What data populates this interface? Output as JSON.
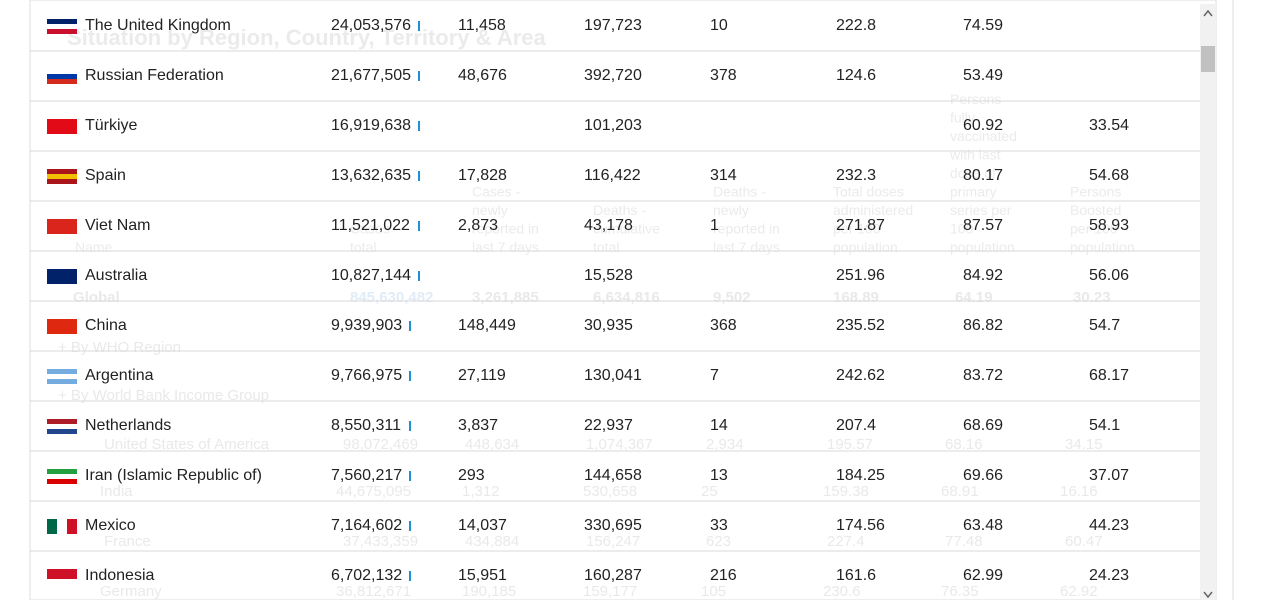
{
  "background": {
    "title": "Situation by Region, Country, Territory & Area",
    "headers": [
      "Name",
      "Cases - total",
      "Cases - newly reported in last 7 days",
      "Deaths - cumulative total",
      "Deaths - newly reported in last 7 days",
      "Total doses administered per 100 population",
      "Persons fully vaccinated with last dose of primary series per 100 population",
      "Persons Boosted per 100 population"
    ],
    "global": [
      "Global",
      "845,630,482",
      "3,261,885",
      "6,634,816",
      "9,502",
      "168.89",
      "64.19",
      "30.23"
    ],
    "groups": [
      "+ By WHO Region",
      "+ By World Bank Income Group"
    ],
    "rows": [
      [
        "United States of America",
        "98,072,469",
        "448,634",
        "1,074,367",
        "2,934",
        "195.57",
        "68.16",
        "34.15"
      ],
      [
        "India",
        "44,675,095",
        "1,312",
        "530,658",
        "25",
        "159.38",
        "68.91",
        "16.16"
      ],
      [
        "France",
        "37,433,359",
        "434,884",
        "156,247",
        "623",
        "227.4",
        "77.48",
        "60.47"
      ],
      [
        "Germany",
        "36,812,671",
        "190,185",
        "159,177",
        "105",
        "230.6",
        "76.35",
        "62.92"
      ]
    ]
  },
  "table": {
    "rows": [
      [
        "The United Kingdom",
        "24,053,576",
        "11,458",
        "197,723",
        "10",
        "222.8",
        "74.59",
        null
      ],
      [
        "Russian Federation",
        "21,677,505",
        "48,676",
        "392,720",
        "378",
        "124.6",
        "53.49",
        null
      ],
      [
        "Türkiye",
        "16,919,638",
        null,
        "101,203",
        null,
        null,
        "60.92",
        "33.54"
      ],
      [
        "Spain",
        "13,632,635",
        "17,828",
        "116,422",
        "314",
        "232.3",
        "80.17",
        "54.68"
      ],
      [
        "Viet Nam",
        "11,521,022",
        "2,873",
        "43,178",
        "1",
        "271.87",
        "87.57",
        "58.93"
      ],
      [
        "Australia",
        "10,827,144",
        null,
        "15,528",
        null,
        "251.96",
        "84.92",
        "56.06"
      ],
      [
        "China",
        "9,939,903",
        "148,449",
        "30,935",
        "368",
        "235.52",
        "86.82",
        "54.7"
      ],
      [
        "Argentina",
        "9,766,975",
        "27,119",
        "130,041",
        "7",
        "242.62",
        "83.72",
        "68.17"
      ],
      [
        "Netherlands",
        "8,550,311",
        "3,837",
        "22,937",
        "14",
        "207.4",
        "68.69",
        "54.1"
      ],
      [
        "Iran (Islamic Republic of)",
        "7,560,217",
        "293",
        "144,658",
        "13",
        "184.25",
        "69.66",
        "37.07"
      ],
      [
        "Mexico",
        "7,164,602",
        "14,037",
        "330,695",
        "33",
        "174.56",
        "63.48",
        "44.23"
      ],
      [
        "Indonesia",
        "6,702,132",
        "15,951",
        "160,287",
        "216",
        "161.6",
        "62.99",
        "24.23"
      ]
    ]
  }
}
